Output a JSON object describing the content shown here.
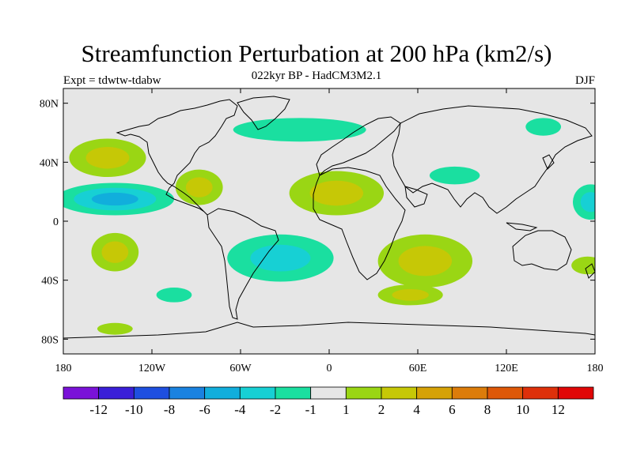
{
  "title": "Streamfunction Perturbation at 200 hPa (km2/s)",
  "subtitle": "022kyr BP - HadCM3M2.1",
  "left_label": "Expt = tdwtw-tdabw",
  "right_label": "DJF",
  "map": {
    "projection": "equirectangular",
    "lon_range": [
      -180,
      180
    ],
    "lat_range": [
      -90,
      90
    ],
    "x_ticks": [
      {
        "value": -180,
        "label": "180"
      },
      {
        "value": -120,
        "label": "120W"
      },
      {
        "value": -60,
        "label": "60W"
      },
      {
        "value": 0,
        "label": "0"
      },
      {
        "value": 60,
        "label": "60E"
      },
      {
        "value": 120,
        "label": "120E"
      },
      {
        "value": 180,
        "label": "180"
      }
    ],
    "y_ticks": [
      {
        "value": 80,
        "label": "80N"
      },
      {
        "value": 40,
        "label": "40N"
      },
      {
        "value": 0,
        "label": "0"
      },
      {
        "value": -40,
        "label": "40S"
      },
      {
        "value": -80,
        "label": "80S"
      }
    ],
    "background_color": "#e6e6e6"
  },
  "colorbar": {
    "colors": [
      "#7a12d8",
      "#3a1fd8",
      "#1e4fe0",
      "#1a82e0",
      "#11aedc",
      "#17d0d4",
      "#1adfa0",
      "#e6e6e6",
      "#9ad614",
      "#c6c806",
      "#d6a206",
      "#dc7c0a",
      "#de5808",
      "#de300a",
      "#e00606"
    ],
    "labels": [
      "-12",
      "-10",
      "-8",
      "-6",
      "-4",
      "-2",
      "-1",
      "1",
      "2",
      "4",
      "6",
      "8",
      "10",
      "12"
    ]
  },
  "fields": [
    {
      "name": "north-pacific-high",
      "lon": -150,
      "lat": 43,
      "rx": 26,
      "ry": 13,
      "levels": [
        "#9ad614",
        "#c6c806"
      ]
    },
    {
      "name": "subtropical-pacific-low",
      "lon": -145,
      "lat": 15,
      "rx": 40,
      "ry": 11,
      "levels": [
        "#1adfa0",
        "#17d0d4",
        "#11aedc"
      ]
    },
    {
      "name": "east-pacific-low",
      "lon": 177,
      "lat": 13,
      "rx": 12,
      "ry": 12,
      "levels": [
        "#1adfa0",
        "#17d0d4"
      ]
    },
    {
      "name": "caribbean-high",
      "lon": -88,
      "lat": 23,
      "rx": 16,
      "ry": 12,
      "levels": [
        "#9ad614",
        "#c6c806"
      ]
    },
    {
      "name": "atlantic-arctic-band",
      "lon": -20,
      "lat": 62,
      "rx": 45,
      "ry": 8,
      "levels": [
        "#1adfa0"
      ]
    },
    {
      "name": "africa-high",
      "lon": 5,
      "lat": 19,
      "rx": 32,
      "ry": 15,
      "levels": [
        "#9ad614",
        "#c6c806"
      ]
    },
    {
      "name": "central-asia-low",
      "lon": 85,
      "lat": 31,
      "rx": 17,
      "ry": 6,
      "levels": [
        "#1adfa0"
      ]
    },
    {
      "name": "kamchatka-low",
      "lon": 145,
      "lat": 64,
      "rx": 12,
      "ry": 6,
      "levels": [
        "#1adfa0"
      ]
    },
    {
      "name": "south-pacific-high",
      "lon": -145,
      "lat": -21,
      "rx": 16,
      "ry": 13,
      "levels": [
        "#9ad614",
        "#c6c806"
      ]
    },
    {
      "name": "south-atlantic-low",
      "lon": -33,
      "lat": -25,
      "rx": 36,
      "ry": 16,
      "levels": [
        "#1adfa0",
        "#17d0d4"
      ]
    },
    {
      "name": "indian-ocean-high",
      "lon": 65,
      "lat": -27,
      "rx": 32,
      "ry": 18,
      "levels": [
        "#9ad614",
        "#c6c806"
      ]
    },
    {
      "name": "southern-indian-high",
      "lon": 55,
      "lat": -50,
      "rx": 22,
      "ry": 7,
      "levels": [
        "#9ad614",
        "#c6c806"
      ]
    },
    {
      "name": "east-australia-high",
      "lon": 175,
      "lat": -30,
      "rx": 11,
      "ry": 6,
      "levels": [
        "#9ad614"
      ]
    },
    {
      "name": "south-pacific-low",
      "lon": -105,
      "lat": -50,
      "rx": 12,
      "ry": 5,
      "levels": [
        "#1adfa0"
      ]
    },
    {
      "name": "southern-ocean-low",
      "lon": -145,
      "lat": -73,
      "rx": 12,
      "ry": 4,
      "levels": [
        "#9ad614"
      ]
    }
  ]
}
